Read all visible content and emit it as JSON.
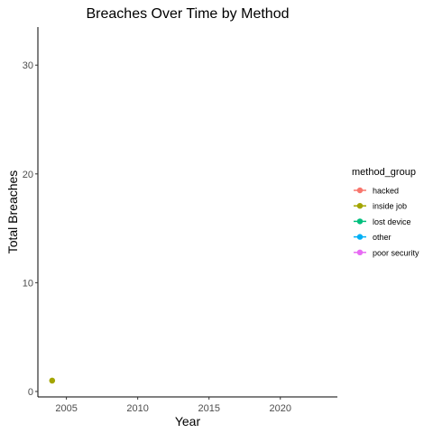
{
  "chart_data": {
    "type": "line",
    "title": "Breaches Over Time by Method",
    "xlabel": "Year",
    "ylabel": "Total Breaches",
    "xlim": [
      2003.0,
      2024.0
    ],
    "ylim": [
      -0.5,
      33.5
    ],
    "xticks": [
      2005,
      2010,
      2015,
      2020
    ],
    "yticks": [
      0,
      10,
      20,
      30
    ],
    "grid": false,
    "legend": {
      "title": "method_group",
      "placement": "right"
    },
    "series": [
      {
        "name": "hacked",
        "color": "#F8766D",
        "points": []
      },
      {
        "name": "inside job",
        "color": "#A3A500",
        "points": [
          {
            "x": 2004,
            "y": 1
          }
        ]
      },
      {
        "name": "lost device",
        "color": "#00BF7D",
        "points": []
      },
      {
        "name": "other",
        "color": "#00B0F6",
        "points": []
      },
      {
        "name": "poor security",
        "color": "#E76BF3",
        "points": []
      }
    ]
  }
}
